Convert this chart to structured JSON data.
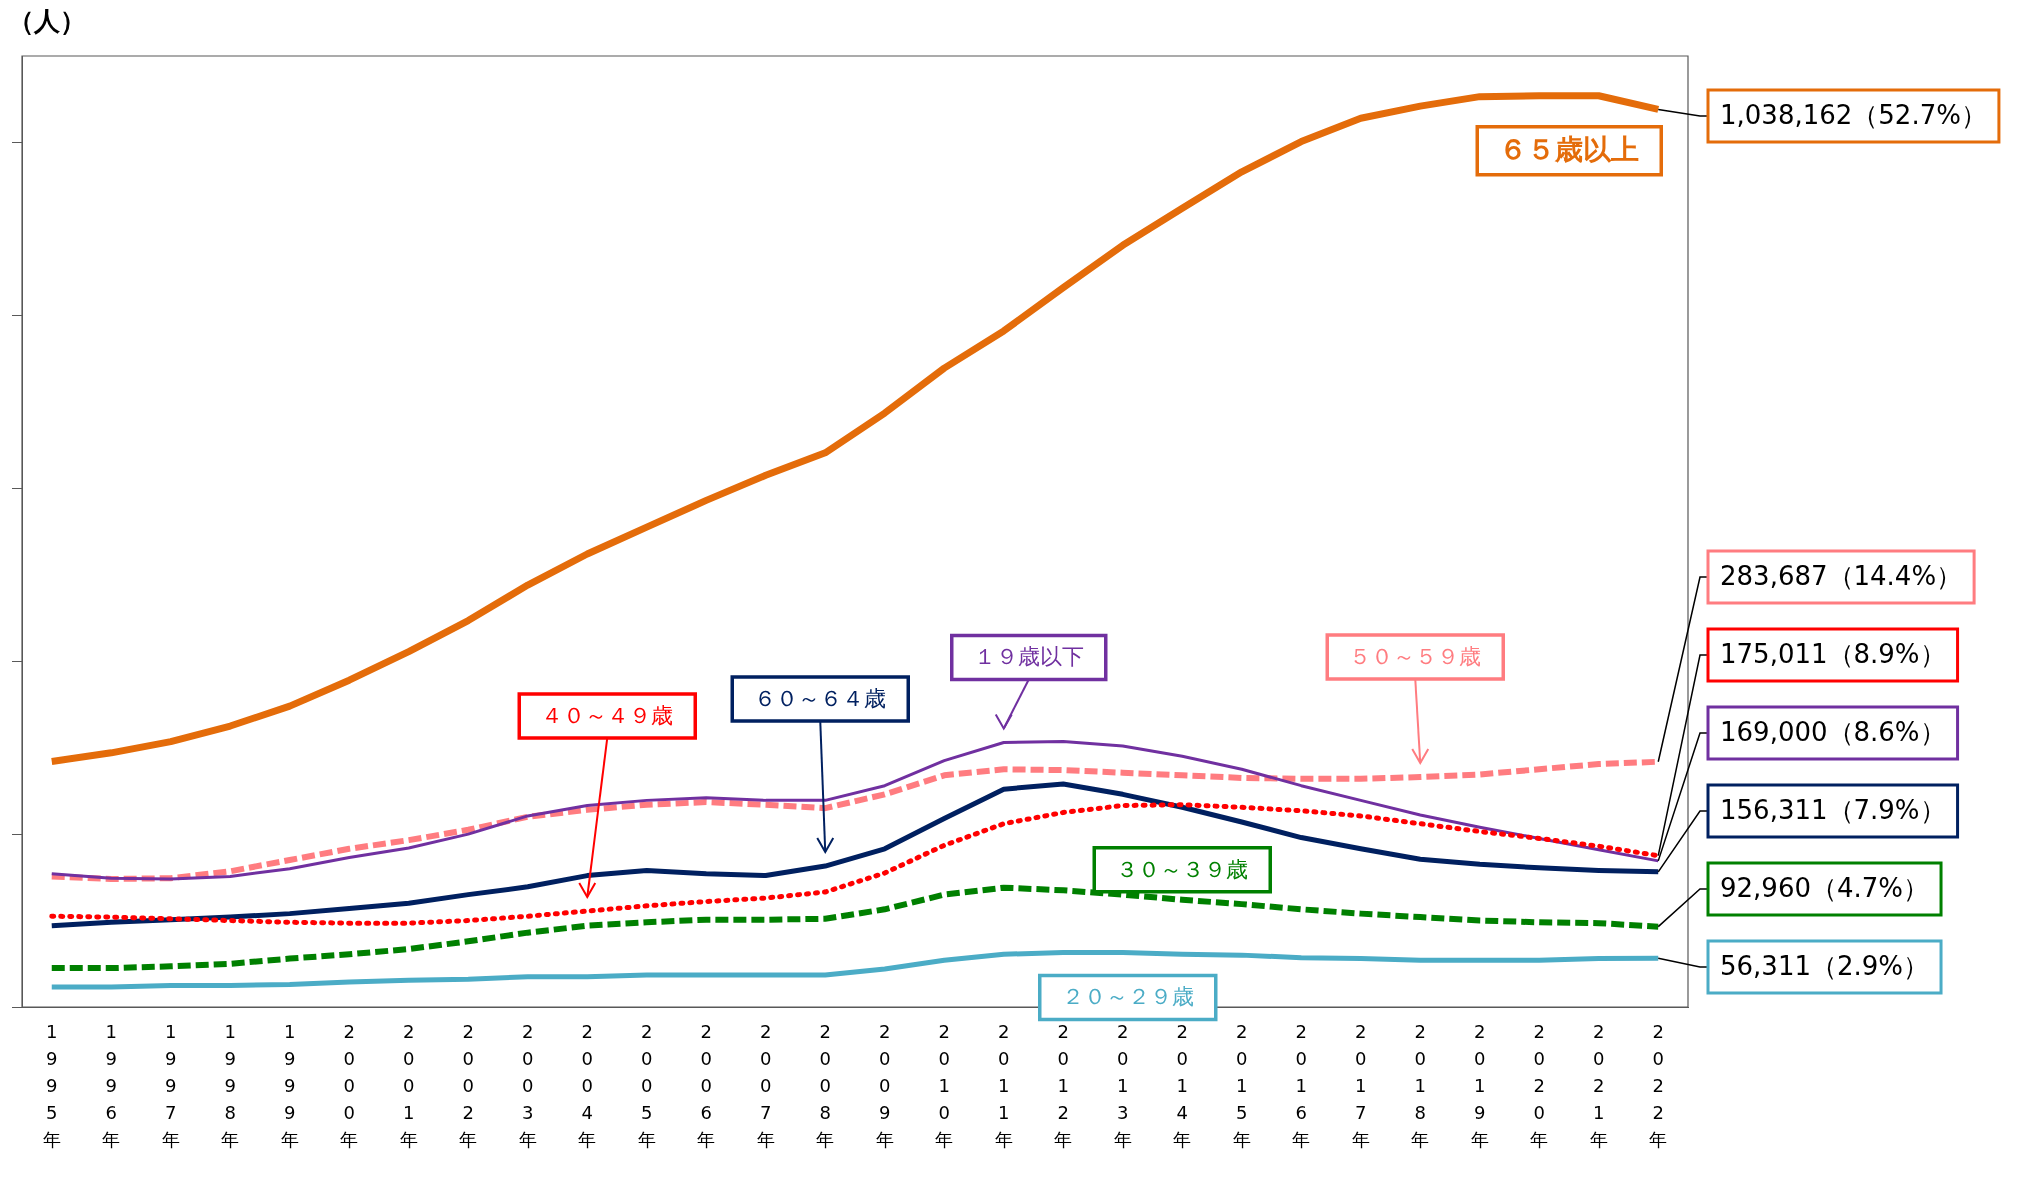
{
  "chart_data": {
    "type": "line",
    "ylabel": "（人）",
    "categories": [
      "1995年",
      "1996年",
      "1997年",
      "1998年",
      "1999年",
      "2000年",
      "2001年",
      "2002年",
      "2003年",
      "2004年",
      "2005年",
      "2006年",
      "2007年",
      "2008年",
      "2009年",
      "2010年",
      "2011年",
      "2012年",
      "2013年",
      "2014年",
      "2015年",
      "2016年",
      "2017年",
      "2018年",
      "2019年",
      "2020年",
      "2021年",
      "2022年"
    ],
    "ylim": [
      0,
      1100000
    ],
    "yticks": [
      {
        "value": 0,
        "label": null
      },
      {
        "value": 200000,
        "label": null
      },
      {
        "value": 400000,
        "label": null
      },
      {
        "value": 600000,
        "label": null
      },
      {
        "value": 800000,
        "label": null
      },
      {
        "value": 1000000,
        "label": null
      }
    ],
    "tick_labels": "x",
    "grid": false,
    "legend": false,
    "series": [
      {
        "name": "６５歳以上",
        "color": "#e46c0a",
        "line_style": "solid",
        "values": [
          284000,
          294000,
          307000,
          325000,
          348000,
          378000,
          411000,
          447000,
          488000,
          524000,
          555000,
          586000,
          615000,
          641000,
          687000,
          739000,
          782000,
          832000,
          881000,
          924000,
          966000,
          1001000,
          1028000,
          1042000,
          1053000,
          1054000,
          1054000,
          1038162
        ],
        "value_labels": [
          null,
          null,
          null,
          null,
          null,
          null,
          null,
          null,
          null,
          null,
          null,
          null,
          null,
          null,
          null,
          null,
          null,
          null,
          null,
          null,
          null,
          null,
          null,
          null,
          null,
          null,
          null,
          "1,038,162（52.7%）"
        ]
      },
      {
        "name": "５０～５９歳",
        "color": "#ff7c80",
        "line_style": "dashed",
        "values": [
          151000,
          148000,
          149000,
          157000,
          170000,
          183000,
          193000,
          205000,
          220000,
          228000,
          234000,
          237000,
          234000,
          230000,
          246000,
          268000,
          275000,
          274000,
          271000,
          268000,
          265000,
          264000,
          264000,
          266000,
          269000,
          275000,
          281000,
          283687
        ],
        "value_labels": [
          null,
          null,
          null,
          null,
          null,
          null,
          null,
          null,
          null,
          null,
          null,
          null,
          null,
          null,
          null,
          null,
          null,
          null,
          null,
          null,
          null,
          null,
          null,
          null,
          null,
          null,
          null,
          "283,687（14.4%）"
        ]
      },
      {
        "name": "４０～４９歳",
        "color": "#ff0000",
        "line_style": "dotted",
        "values": [
          105000,
          104000,
          102000,
          100000,
          98000,
          97000,
          97000,
          100000,
          105000,
          111000,
          117000,
          122000,
          126000,
          133000,
          155000,
          187000,
          212000,
          225000,
          233000,
          234000,
          231000,
          227000,
          221000,
          212000,
          203000,
          195000,
          186000,
          175011
        ],
        "value_labels": [
          null,
          null,
          null,
          null,
          null,
          null,
          null,
          null,
          null,
          null,
          null,
          null,
          null,
          null,
          null,
          null,
          null,
          null,
          null,
          null,
          null,
          null,
          null,
          null,
          null,
          null,
          null,
          "175,011（8.9%）"
        ]
      },
      {
        "name": "１９歳以下",
        "color": "#7030a0",
        "line_style": "solid",
        "values": [
          154000,
          149000,
          148000,
          151000,
          160000,
          173000,
          184000,
          200000,
          221000,
          233000,
          239000,
          242000,
          239000,
          239000,
          256000,
          285000,
          306000,
          307000,
          302000,
          290000,
          275000,
          256000,
          239000,
          222000,
          208000,
          195000,
          182000,
          169000
        ],
        "value_labels": [
          null,
          null,
          null,
          null,
          null,
          null,
          null,
          null,
          null,
          null,
          null,
          null,
          null,
          null,
          null,
          null,
          null,
          null,
          null,
          null,
          null,
          null,
          null,
          null,
          null,
          null,
          null,
          "169,000（8.6%）"
        ]
      },
      {
        "name": "６０～６４歳",
        "color": "#002060",
        "line_style": "solid",
        "values": [
          94000,
          98000,
          101000,
          104000,
          108000,
          114000,
          120000,
          130000,
          139000,
          152000,
          158000,
          154000,
          152000,
          163000,
          183000,
          218000,
          252000,
          258000,
          246000,
          231000,
          214000,
          196000,
          183000,
          171000,
          165000,
          161000,
          158000,
          156311
        ],
        "value_labels": [
          null,
          null,
          null,
          null,
          null,
          null,
          null,
          null,
          null,
          null,
          null,
          null,
          null,
          null,
          null,
          null,
          null,
          null,
          null,
          null,
          null,
          null,
          null,
          null,
          null,
          null,
          null,
          "156,311（7.9%）"
        ]
      },
      {
        "name": "３０～３９歳",
        "color": "#008000",
        "line_style": "dashed",
        "values": [
          45000,
          45000,
          47000,
          50000,
          56000,
          61000,
          67000,
          76000,
          86000,
          94000,
          98000,
          101000,
          101000,
          102000,
          113000,
          130000,
          138000,
          135000,
          130000,
          124000,
          119000,
          113000,
          108000,
          104000,
          100000,
          98000,
          97000,
          92960
        ],
        "value_labels": [
          null,
          null,
          null,
          null,
          null,
          null,
          null,
          null,
          null,
          null,
          null,
          null,
          null,
          null,
          null,
          null,
          null,
          null,
          null,
          null,
          null,
          null,
          null,
          null,
          null,
          null,
          null,
          "92,960（4.7%）"
        ]
      },
      {
        "name": "２０～２９歳",
        "color": "#4bacc6",
        "line_style": "solid",
        "values": [
          23000,
          23000,
          25000,
          25000,
          26000,
          29000,
          31000,
          32000,
          35000,
          35000,
          37000,
          37000,
          37000,
          37000,
          44000,
          54000,
          61000,
          63000,
          63000,
          61000,
          60000,
          57000,
          56000,
          54000,
          54000,
          54000,
          56000,
          56311
        ],
        "value_labels": [
          null,
          null,
          null,
          null,
          null,
          null,
          null,
          null,
          null,
          null,
          null,
          null,
          null,
          null,
          null,
          null,
          null,
          null,
          null,
          null,
          null,
          null,
          null,
          null,
          null,
          null,
          null,
          "56,311（2.9%）"
        ]
      }
    ]
  }
}
